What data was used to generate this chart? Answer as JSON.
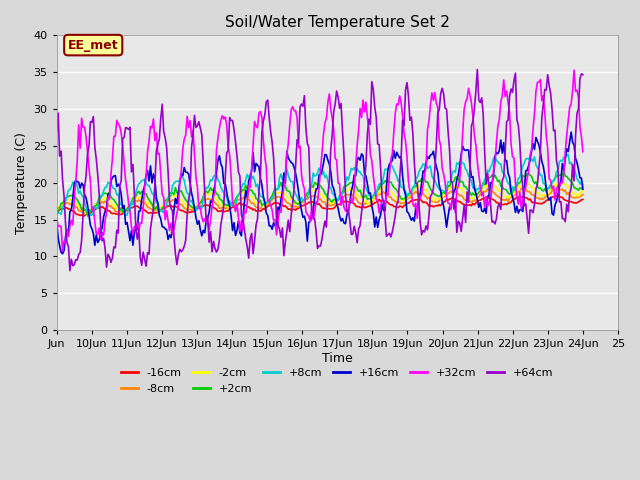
{
  "title": "Soil/Water Temperature Set 2",
  "xlabel": "Time",
  "ylabel": "Temperature (C)",
  "annotation": "EE_met",
  "ylim": [
    0,
    40
  ],
  "yticks": [
    0,
    5,
    10,
    15,
    20,
    25,
    30,
    35,
    40
  ],
  "x_labels": [
    "Jun",
    "10Jun",
    "11Jun",
    "12Jun",
    "13Jun",
    "14Jun",
    "15Jun",
    "16Jun",
    "17Jun",
    "18Jun",
    "19Jun",
    "20Jun",
    "21Jun",
    "22Jun",
    "23Jun",
    "24Jun",
    "25"
  ],
  "n_points": 360,
  "series": {
    "-16cm": {
      "color": "#ff0000",
      "base": 16.0,
      "amp": 0.5,
      "phase": 0.0,
      "trend": 0.005
    },
    "-8cm": {
      "color": "#ff8800",
      "base": 16.5,
      "amp": 0.7,
      "phase": 0.1,
      "trend": 0.006
    },
    "-2cm": {
      "color": "#ffff00",
      "base": 16.8,
      "amp": 0.9,
      "phase": 0.2,
      "trend": 0.007
    },
    "+2cm": {
      "color": "#00cc00",
      "base": 17.0,
      "amp": 1.2,
      "phase": 0.3,
      "trend": 0.009
    },
    "+8cm": {
      "color": "#00cccc",
      "base": 17.5,
      "amp": 2.0,
      "phase": 0.5,
      "trend": 0.012
    },
    "+16cm": {
      "color": "#0000cc",
      "base": 16.0,
      "amp": 4.5,
      "phase": 0.8,
      "trend": 0.015
    },
    "+32cm": {
      "color": "#ff00ff",
      "base": 17.0,
      "amp": 8.0,
      "phase": 1.0,
      "trend": 0.018
    },
    "+64cm": {
      "color": "#9900cc",
      "base": 14.0,
      "amp": 10.0,
      "phase": 1.5,
      "trend": 0.022
    }
  },
  "plot_bg": "#e8e8e8",
  "fig_bg": "#d9d9d9",
  "grid_color": "#ffffff",
  "annotation_bg": "#ffff99",
  "annotation_fg": "#880000"
}
